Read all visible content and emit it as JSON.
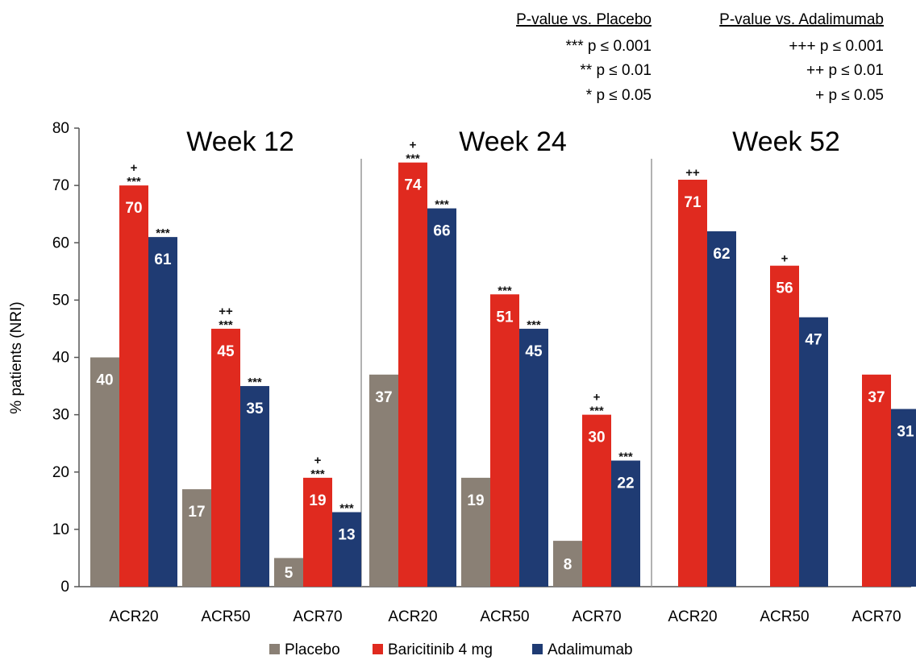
{
  "significance_key": {
    "placebo": {
      "heading": "P-value vs. Placebo",
      "rows": [
        "*** p ≤ 0.001",
        "** p ≤ 0.01",
        "* p ≤ 0.05"
      ]
    },
    "adalimumab": {
      "heading": "P-value vs. Adalimumab",
      "rows": [
        "+++ p ≤ 0.001",
        "++ p ≤ 0.01",
        "+ p ≤ 0.05"
      ]
    }
  },
  "colors": {
    "placebo": "#8a8075",
    "baricitinib": "#e02a1f",
    "adalimumab": "#1f3b73",
    "axis": "#555555",
    "divider": "#999999"
  },
  "chart_data": {
    "type": "bar",
    "ylabel": "% patients (NRI)",
    "ylim": [
      0,
      80
    ],
    "yticks": [
      0,
      10,
      20,
      30,
      40,
      50,
      60,
      70,
      80
    ],
    "groups": [
      {
        "title": "Week 12",
        "categories": [
          "ACR20",
          "ACR50",
          "ACR70"
        ],
        "series": [
          {
            "name": "Placebo",
            "values": [
              40,
              17,
              5
            ],
            "labels": [
              "40",
              "17",
              "5"
            ],
            "sig_placebo": [
              "",
              "",
              ""
            ],
            "sig_adalimumab": [
              "",
              "",
              ""
            ]
          },
          {
            "name": "Baricitinib 4 mg",
            "values": [
              70,
              45,
              19
            ],
            "labels": [
              "70",
              "45",
              "19"
            ],
            "sig_placebo": [
              "***",
              "***",
              "***"
            ],
            "sig_adalimumab": [
              "+",
              "++",
              "+"
            ]
          },
          {
            "name": "Adalimumab",
            "values": [
              61,
              35,
              13
            ],
            "labels": [
              "61",
              "35",
              "13"
            ],
            "sig_placebo": [
              "***",
              "***",
              "***"
            ],
            "sig_adalimumab": [
              "",
              "",
              ""
            ]
          }
        ]
      },
      {
        "title": "Week 24",
        "categories": [
          "ACR20",
          "ACR50",
          "ACR70"
        ],
        "series": [
          {
            "name": "Placebo",
            "values": [
              37,
              19,
              8
            ],
            "labels": [
              "37",
              "19",
              "8"
            ],
            "sig_placebo": [
              "",
              "",
              ""
            ],
            "sig_adalimumab": [
              "",
              "",
              ""
            ]
          },
          {
            "name": "Baricitinib 4 mg",
            "values": [
              74,
              51,
              30
            ],
            "labels": [
              "74",
              "51",
              "30"
            ],
            "sig_placebo": [
              "***",
              "***",
              "***"
            ],
            "sig_adalimumab": [
              "+",
              "",
              "+"
            ]
          },
          {
            "name": "Adalimumab",
            "values": [
              66,
              45,
              22
            ],
            "labels": [
              "66",
              "45",
              "22"
            ],
            "sig_placebo": [
              "***",
              "***",
              "***"
            ],
            "sig_adalimumab": [
              "",
              "",
              ""
            ]
          }
        ]
      },
      {
        "title": "Week 52",
        "categories": [
          "ACR20",
          "ACR50",
          "ACR70"
        ],
        "series": [
          {
            "name": "Placebo",
            "values": [
              null,
              null,
              null
            ],
            "labels": [
              "",
              "",
              ""
            ],
            "sig_placebo": [
              "",
              "",
              ""
            ],
            "sig_adalimumab": [
              "",
              "",
              ""
            ]
          },
          {
            "name": "Baricitinib 4 mg",
            "values": [
              71,
              56,
              37
            ],
            "labels": [
              "71",
              "56",
              "37"
            ],
            "sig_placebo": [
              "",
              "",
              ""
            ],
            "sig_adalimumab": [
              "++",
              "+",
              ""
            ]
          },
          {
            "name": "Adalimumab",
            "values": [
              62,
              47,
              31
            ],
            "labels": [
              "62",
              "47",
              "31"
            ],
            "sig_placebo": [
              "",
              "",
              ""
            ],
            "sig_adalimumab": [
              "",
              "",
              ""
            ]
          }
        ]
      }
    ],
    "legend": {
      "placement": "bottom",
      "entries": [
        "Placebo",
        "Baricitinib 4 mg",
        "Adalimumab"
      ]
    },
    "grid": false
  }
}
